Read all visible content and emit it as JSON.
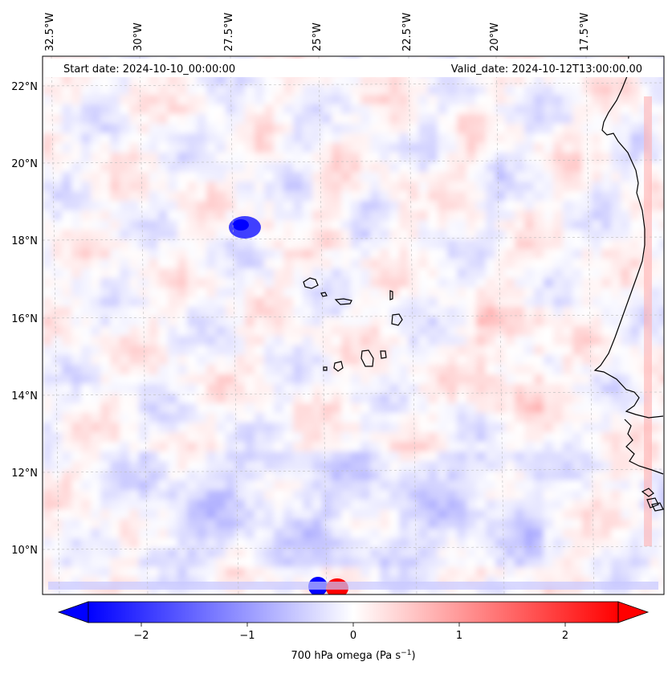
{
  "chart_data": {
    "type": "map_contour",
    "projection": "lambert-conformal",
    "header": {
      "start_date": "Start date: 2024-10-10_00:00:00",
      "valid_date": "Valid_date: 2024-10-12T13:00:00.00"
    },
    "lon_labels": [
      "32.5°W",
      "30°W",
      "27.5°W",
      "25°W",
      "22.5°W",
      "20°W",
      "17.5°W"
    ],
    "lat_labels": [
      "22°N",
      "20°N",
      "18°N",
      "16°N",
      "14°N",
      "12°N",
      "10°N"
    ],
    "extent": {
      "lon": [
        -33.0,
        -15.5
      ],
      "lat": [
        8.9,
        22.8
      ]
    },
    "colorbar": {
      "label": "700 hPa omega (Pa s",
      "label_exponent": "−1",
      "label_close": ")",
      "range": [
        -2.5,
        2.5
      ],
      "ticks": [
        {
          "value": -2,
          "label": "−2"
        },
        {
          "value": -1,
          "label": "−1"
        },
        {
          "value": 0,
          "label": "0"
        },
        {
          "value": 1,
          "label": "1"
        },
        {
          "value": 2,
          "label": "2"
        }
      ],
      "extend": "both",
      "colormap": "bwr"
    },
    "features": [
      {
        "name": "strong ascent near 27.3°W 18.3°N",
        "sign": "negative"
      },
      {
        "name": "dipole near 24.5°W 9.0°N",
        "sign": "mixed"
      },
      {
        "name": "Cabo Verde islands",
        "type": "coastline"
      },
      {
        "name": "West African coastline",
        "type": "coastline"
      }
    ]
  },
  "colors": {
    "negative": "#0000ff",
    "zero": "#ffffff",
    "positive": "#ff0000",
    "coast": "#000000",
    "grid": "#bbbbbb"
  }
}
